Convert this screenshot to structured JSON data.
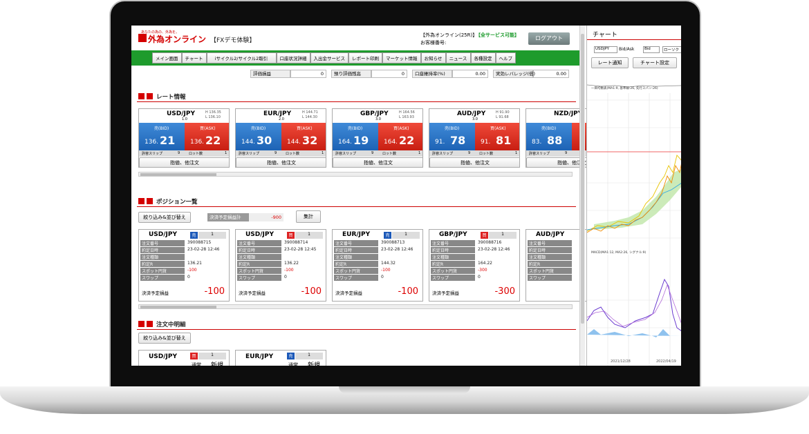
{
  "header": {
    "tagline": "あなたの為の、外為を。",
    "logo": "外為オンライン",
    "mode": "【FXデモ体験】",
    "account": "【外為オンライン(25R)】",
    "status": "【全サービス可能】",
    "customer": "お客様番号:",
    "logout": "ログアウト"
  },
  "nav": [
    "メイン画面",
    "チャート",
    "iサイクル2/サイクル2取引",
    "口座状況詳細",
    "入出金サービス",
    "レポート印刷",
    "マーケット情報",
    "お知らせ",
    "ニュース",
    "各種設定",
    "ヘルプ"
  ],
  "summary": [
    {
      "label": "評価損益",
      "value": "0"
    },
    {
      "label": "預り評価残高",
      "value": "0"
    },
    {
      "label": "口座維持率(%)",
      "value": "0.00"
    },
    {
      "label": "実効レバレッジ(倍)",
      "value": "0.00"
    }
  ],
  "rates": {
    "title": "レート情報",
    "bid_label": "売(BID)",
    "ask_label": "買(ASK)",
    "slip_label": "許容スリップ",
    "lot_label": "ロット数",
    "order_button": "指値、他注文",
    "cards": [
      {
        "pair": "USD/JPY",
        "high": "H 136.35",
        "low": "L 136.10",
        "spread": "1.0",
        "bid": [
          "136.",
          "21"
        ],
        "ask": [
          "136.",
          "22"
        ],
        "slip": "9",
        "lot": "1"
      },
      {
        "pair": "EUR/JPY",
        "high": "H 144.71",
        "low": "L 144.30",
        "spread": "2.0",
        "bid": [
          "144.",
          "30"
        ],
        "ask": [
          "144.",
          "32"
        ],
        "slip": "9",
        "lot": "1"
      },
      {
        "pair": "GBP/JPY",
        "high": "H 164.56",
        "low": "L 163.93",
        "spread": "3.0",
        "bid": [
          "164.",
          "19"
        ],
        "ask": [
          "164.",
          "22"
        ],
        "slip": "9",
        "lot": "1"
      },
      {
        "pair": "AUD/JPY",
        "high": "H 91.90",
        "low": "L 91.68",
        "spread": "3.0",
        "bid": [
          "91.",
          "78"
        ],
        "ask": [
          "91.",
          "81"
        ],
        "slip": "9",
        "lot": "1"
      },
      {
        "pair": "NZD/JPY",
        "bid": [
          "83.",
          "88"
        ],
        "slip": "9"
      }
    ]
  },
  "positions": {
    "title": "ポジション一覧",
    "filter_button": "絞り込み&並び替え",
    "total_label": "決済予定損益計",
    "total_value": "-900",
    "sum_button": "集計",
    "footer_label": "決済予定損益",
    "row_labels": [
      "注文番号",
      "約定日時",
      "注文種類",
      "約定R",
      "スポット円貨",
      "スワップ"
    ],
    "cards": [
      {
        "pair": "USD/JPY",
        "side": "売",
        "qty": "1",
        "values": [
          "390088715",
          "23-02-28 12:46",
          null,
          "136.21",
          "-100",
          "0"
        ],
        "pl": "-100"
      },
      {
        "pair": "USD/JPY",
        "side": "買",
        "qty": "1",
        "values": [
          "390088714",
          "23-02-28 12:45",
          null,
          "136.22",
          "-100",
          "0"
        ],
        "pl": "-100"
      },
      {
        "pair": "EUR/JPY",
        "side": "売",
        "qty": "1",
        "values": [
          "390088713",
          "23-02-28 12:46",
          null,
          "144.32",
          "-100",
          "0"
        ],
        "pl": "-100"
      },
      {
        "pair": "GBP/JPY",
        "side": "買",
        "qty": "1",
        "values": [
          "390088716",
          "23-02-28 12:46",
          null,
          "164.22",
          "-300",
          "0"
        ],
        "pl": "-300"
      },
      {
        "pair": "AUD/JPY"
      }
    ]
  },
  "orders": {
    "title": "注文中明細",
    "filter_button": "絞り込み&並び替え",
    "cards": [
      {
        "pair": "USD/JPY",
        "side": "買",
        "qty": "1",
        "kind": "通常",
        "type": "新規"
      },
      {
        "pair": "EUR/JPY",
        "side": "売",
        "qty": "1",
        "kind": "通常",
        "type": "新規"
      }
    ]
  },
  "chart": {
    "title": "チャート",
    "symbol": "USDJPY",
    "price_type_label": "Bid/Ask",
    "price_type": "Bid",
    "style": "ローソク",
    "alert_button": "レート通知",
    "settings_button": "チャート設定",
    "indicator": "一目均衡表(MA1:9, 基準線:26, 先行スパン:26)",
    "macd": "MACD(MA1:12, MA2:26, シグナル:9)",
    "dates": [
      "2021/12/28",
      "2022/04/19"
    ]
  }
}
